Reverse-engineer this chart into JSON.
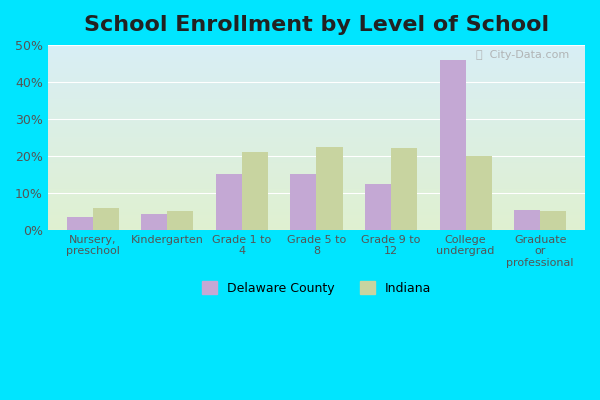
{
  "title": "School Enrollment by Level of School",
  "categories": [
    "Nursery,\npreschool",
    "Kindergarten",
    "Grade 1 to\n4",
    "Grade 5 to\n8",
    "Grade 9 to\n12",
    "College\nundergrad",
    "Graduate\nor\nprofessional"
  ],
  "delaware_values": [
    3.5,
    4.2,
    15.0,
    15.0,
    12.5,
    46.0,
    5.5
  ],
  "indiana_values": [
    6.0,
    5.0,
    21.0,
    22.5,
    22.0,
    20.0,
    5.0
  ],
  "delaware_color": "#c4a8d4",
  "indiana_color": "#c8d4a0",
  "legend_delaware": "Delaware County",
  "legend_indiana": "Indiana",
  "ylim": [
    0,
    50
  ],
  "yticks": [
    0,
    10,
    20,
    30,
    40,
    50
  ],
  "ytick_labels": [
    "0%",
    "10%",
    "20%",
    "30%",
    "40%",
    "50%"
  ],
  "outer_bg": "#00e5ff",
  "title_fontsize": 16,
  "bar_width": 0.35
}
